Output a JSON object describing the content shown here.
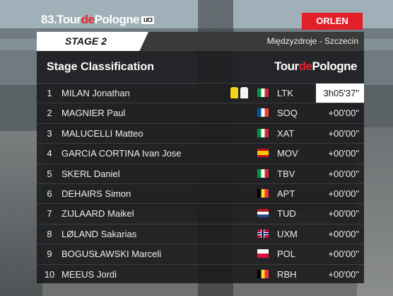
{
  "header": {
    "logo": {
      "number": "83.",
      "tour": "Tour",
      "de": "de",
      "pologne": "Pologne",
      "badge": "UCI"
    },
    "sponsor": "ORLEN",
    "stage": "STAGE 2",
    "route": "Międzyzdroje - Szczecin"
  },
  "panel": {
    "title": "Stage Classification",
    "logo": {
      "tour": "Tour",
      "de": "de",
      "pologne": "Pologne"
    }
  },
  "table": {
    "rows": [
      [
        1,
        "MILAN Jonathan",
        "LTK",
        "3h05'37\""
      ],
      [
        2,
        "MAGNIER Paul",
        "SOQ",
        "+00'00\""
      ],
      [
        3,
        "MALUCELLI Matteo",
        "XAT",
        "+00'00\""
      ],
      [
        4,
        "GARCIA CORTINA Ivan Jose",
        "MOV",
        "+00'00\""
      ],
      [
        5,
        "SKERL Daniel",
        "TBV",
        "+00'00\""
      ],
      [
        6,
        "DEHAIRS Simon",
        "APT",
        "+00'00\""
      ],
      [
        7,
        "ZIJLAARD Maikel",
        "TUD",
        "+00'00\""
      ],
      [
        8,
        "LØLAND Sakarias",
        "UXM",
        "+00'00\""
      ],
      [
        9,
        "BOGUSŁAWSKI Marceli",
        "POL",
        "+00'00\""
      ],
      [
        10,
        "MEEUS Jordi",
        "RBH",
        "+00'00\""
      ]
    ]
  }
}
